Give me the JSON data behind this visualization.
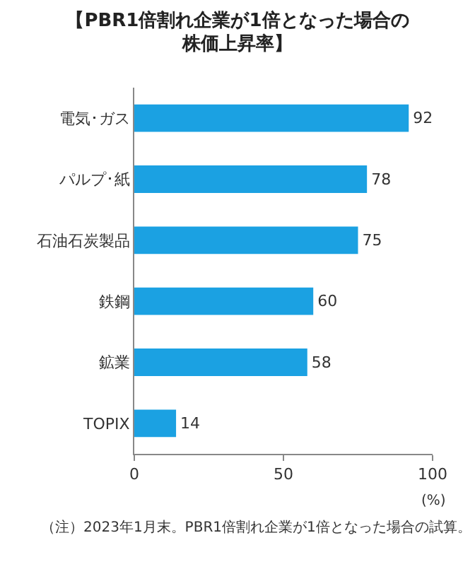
{
  "chart_data": {
    "type": "bar",
    "orientation": "horizontal",
    "title": "【PBR1倍割れ企業が1倍となった場合の株価上昇率】",
    "categories": [
      "電気･ガス",
      "パルプ･紙",
      "石油石炭製品",
      "鉄鋼",
      "鉱業",
      "TOPIX"
    ],
    "values": [
      92,
      78,
      75,
      60,
      58,
      14
    ],
    "color": "#1ba1e2",
    "data_labels": true,
    "xlim": [
      0,
      100
    ],
    "xticks": [
      0,
      50,
      100
    ],
    "xlabel": "(%)",
    "annotations": [
      "（注）2023年1月末。PBR1倍割れ企業が1倍となった場合の試算。"
    ]
  }
}
